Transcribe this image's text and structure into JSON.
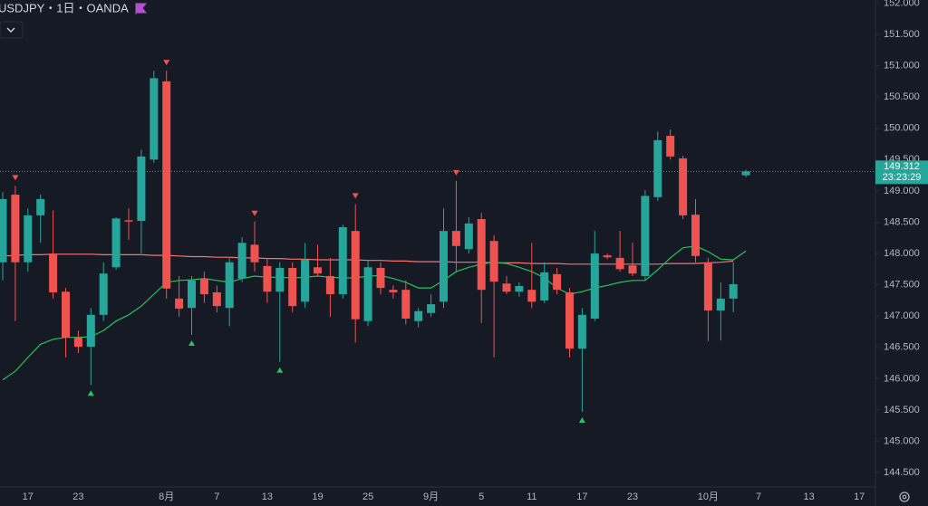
{
  "chart_data": {
    "type": "candlestick",
    "title": "USDJPY・1日・OANDA",
    "countdown": "23:23:29",
    "up_color": "#26a69a",
    "down_color": "#ef5350",
    "categories": [
      null,
      null,
      "17",
      null,
      null,
      null,
      "23",
      null,
      null,
      null,
      null,
      null,
      null,
      "8月",
      null,
      null,
      null,
      "7",
      null,
      null,
      null,
      "13",
      null,
      null,
      null,
      "19",
      null,
      null,
      null,
      "25",
      null,
      null,
      null,
      null,
      "9月",
      null,
      null,
      null,
      "5",
      null,
      null,
      null,
      "11",
      null,
      null,
      null,
      "17",
      null,
      null,
      null,
      "23",
      null,
      null,
      null,
      null,
      null,
      "10月",
      null,
      null,
      null,
      "7",
      null,
      null,
      null,
      "13",
      null,
      null,
      null,
      "17"
    ],
    "open": [
      147.86,
      148.94,
      147.86,
      148.61,
      148.0,
      147.39,
      146.66,
      146.51,
      147.02,
      147.78,
      148.53,
      148.52,
      149.5,
      150.75,
      147.28,
      147.13,
      147.6,
      147.38,
      147.13,
      147.6,
      148.14,
      147.8,
      147.39,
      147.77,
      147.23,
      147.78,
      147.64,
      147.35,
      148.36,
      146.92,
      147.77,
      147.42,
      147.42,
      146.92,
      147.05,
      147.23,
      148.36,
      148.07,
      148.55,
      148.2,
      147.52,
      147.39,
      147.42,
      147.25,
      147.67,
      147.38,
      146.48,
      146.96,
      147.97,
      147.93,
      147.81,
      147.64,
      148.9,
      149.88,
      149.52,
      148.62,
      147.86,
      147.09,
      147.28,
      149.25,
      null,
      null,
      null,
      null,
      null,
      null,
      null,
      null,
      null
    ],
    "high": [
      148.98,
      149.08,
      148.72,
      148.94,
      148.69,
      147.45,
      146.77,
      147.13,
      147.86,
      148.58,
      148.72,
      149.66,
      150.92,
      150.92,
      147.64,
      147.64,
      147.71,
      147.49,
      147.93,
      148.26,
      148.51,
      147.93,
      147.86,
      147.86,
      148.17,
      148.14,
      147.93,
      148.46,
      148.79,
      147.88,
      147.86,
      147.49,
      147.57,
      147.13,
      147.35,
      148.72,
      149.16,
      148.58,
      148.65,
      148.29,
      147.64,
      147.54,
      148.17,
      147.86,
      147.77,
      147.45,
      147.13,
      148.36,
      148.0,
      148.36,
      148.17,
      149.01,
      149.95,
      149.98,
      149.56,
      148.87,
      147.93,
      147.54,
      147.86,
      149.34,
      null,
      null,
      null,
      null,
      null,
      null,
      null,
      null,
      null
    ],
    "low": [
      147.57,
      146.92,
      147.71,
      148.17,
      147.28,
      146.34,
      146.41,
      145.9,
      146.92,
      147.74,
      148.22,
      148.0,
      149.45,
      147.28,
      146.99,
      146.7,
      147.21,
      147.06,
      146.84,
      147.54,
      147.71,
      147.21,
      146.27,
      147.06,
      147.13,
      147.64,
      146.99,
      147.28,
      146.58,
      146.84,
      147.35,
      147.28,
      146.87,
      146.82,
      146.99,
      147.13,
      147.71,
      148.0,
      146.89,
      146.34,
      147.35,
      147.31,
      147.13,
      147.21,
      147.35,
      146.34,
      145.47,
      146.92,
      147.91,
      147.71,
      147.64,
      147.57,
      148.84,
      149.5,
      148.55,
      147.86,
      146.6,
      146.61,
      147.06,
      149.22,
      null,
      null,
      null,
      null,
      null,
      null,
      null,
      null,
      null
    ],
    "close": [
      148.87,
      147.86,
      148.61,
      148.87,
      147.38,
      146.66,
      146.51,
      147.02,
      147.68,
      148.56,
      148.51,
      149.55,
      150.8,
      147.44,
      147.12,
      147.57,
      147.35,
      147.16,
      147.86,
      148.17,
      147.86,
      147.39,
      147.77,
      147.16,
      147.9,
      147.68,
      147.35,
      148.42,
      146.95,
      147.78,
      147.45,
      147.38,
      146.96,
      147.08,
      147.19,
      148.36,
      148.12,
      148.48,
      147.42,
      147.55,
      147.39,
      147.48,
      147.23,
      147.7,
      147.42,
      146.48,
      147.02,
      148.0,
      147.94,
      147.75,
      147.68,
      148.92,
      149.81,
      149.55,
      148.61,
      147.96,
      147.09,
      147.28,
      147.51,
      149.312,
      null,
      null,
      null,
      null,
      null,
      null,
      null,
      null,
      null
    ],
    "ma_fast": {
      "color": "#22c55e",
      "values": [
        145.98,
        146.12,
        146.34,
        146.55,
        146.63,
        146.66,
        146.66,
        146.67,
        146.77,
        146.92,
        147.02,
        147.16,
        147.35,
        147.54,
        147.57,
        147.58,
        147.6,
        147.57,
        147.54,
        147.6,
        147.64,
        147.62,
        147.62,
        147.61,
        147.62,
        147.64,
        147.62,
        147.61,
        147.61,
        147.64,
        147.65,
        147.6,
        147.54,
        147.45,
        147.45,
        147.57,
        147.71,
        147.78,
        147.83,
        147.86,
        147.84,
        147.78,
        147.71,
        147.61,
        147.45,
        147.35,
        147.39,
        147.45,
        147.49,
        147.54,
        147.57,
        147.57,
        147.74,
        147.93,
        148.09,
        148.12,
        148.03,
        147.91,
        147.9,
        148.04,
        null,
        null,
        null,
        null,
        null,
        null,
        null,
        null,
        null
      ]
    },
    "ma_slow": {
      "color": "#f87171",
      "values": [
        147.96,
        147.97,
        147.98,
        147.98,
        147.99,
        147.99,
        147.99,
        147.99,
        147.98,
        147.98,
        147.98,
        147.98,
        147.97,
        147.97,
        147.96,
        147.95,
        147.95,
        147.94,
        147.94,
        147.93,
        147.93,
        147.92,
        147.92,
        147.91,
        147.91,
        147.9,
        147.9,
        147.9,
        147.9,
        147.89,
        147.89,
        147.88,
        147.88,
        147.87,
        147.87,
        147.87,
        147.86,
        147.86,
        147.86,
        147.85,
        147.85,
        147.85,
        147.84,
        147.84,
        147.84,
        147.83,
        147.83,
        147.83,
        147.83,
        147.83,
        147.83,
        147.83,
        147.83,
        147.84,
        147.84,
        147.84,
        147.85,
        147.86,
        147.88,
        null,
        null,
        null,
        null,
        null,
        null,
        null,
        null,
        null,
        null
      ]
    },
    "pivot_highs": [
      1,
      13,
      20,
      28,
      36
    ],
    "pivot_lows": [
      7,
      15,
      22,
      46
    ],
    "ylim": [
      144.27,
      152.05
    ],
    "yticks": [
      {
        "value": 144.5,
        "label": "144.500"
      },
      {
        "value": 145,
        "label": "145.000"
      },
      {
        "value": 145.5,
        "label": "145.500"
      },
      {
        "value": 146,
        "label": "146.000"
      },
      {
        "value": 146.5,
        "label": "146.500"
      },
      {
        "value": 147,
        "label": "147.000"
      },
      {
        "value": 147.5,
        "label": "147.500"
      },
      {
        "value": 148,
        "label": "148.000"
      },
      {
        "value": 148.5,
        "label": "148.500"
      },
      {
        "value": 149,
        "label": "149.000"
      },
      {
        "value": 149.5,
        "label": "149.500"
      },
      {
        "value": 150,
        "label": "150.000"
      },
      {
        "value": 150.5,
        "label": "150.500"
      },
      {
        "value": 151,
        "label": "151.000"
      },
      {
        "value": 151.5,
        "label": "151.500"
      },
      {
        "value": 152,
        "label": "152.000"
      }
    ]
  }
}
